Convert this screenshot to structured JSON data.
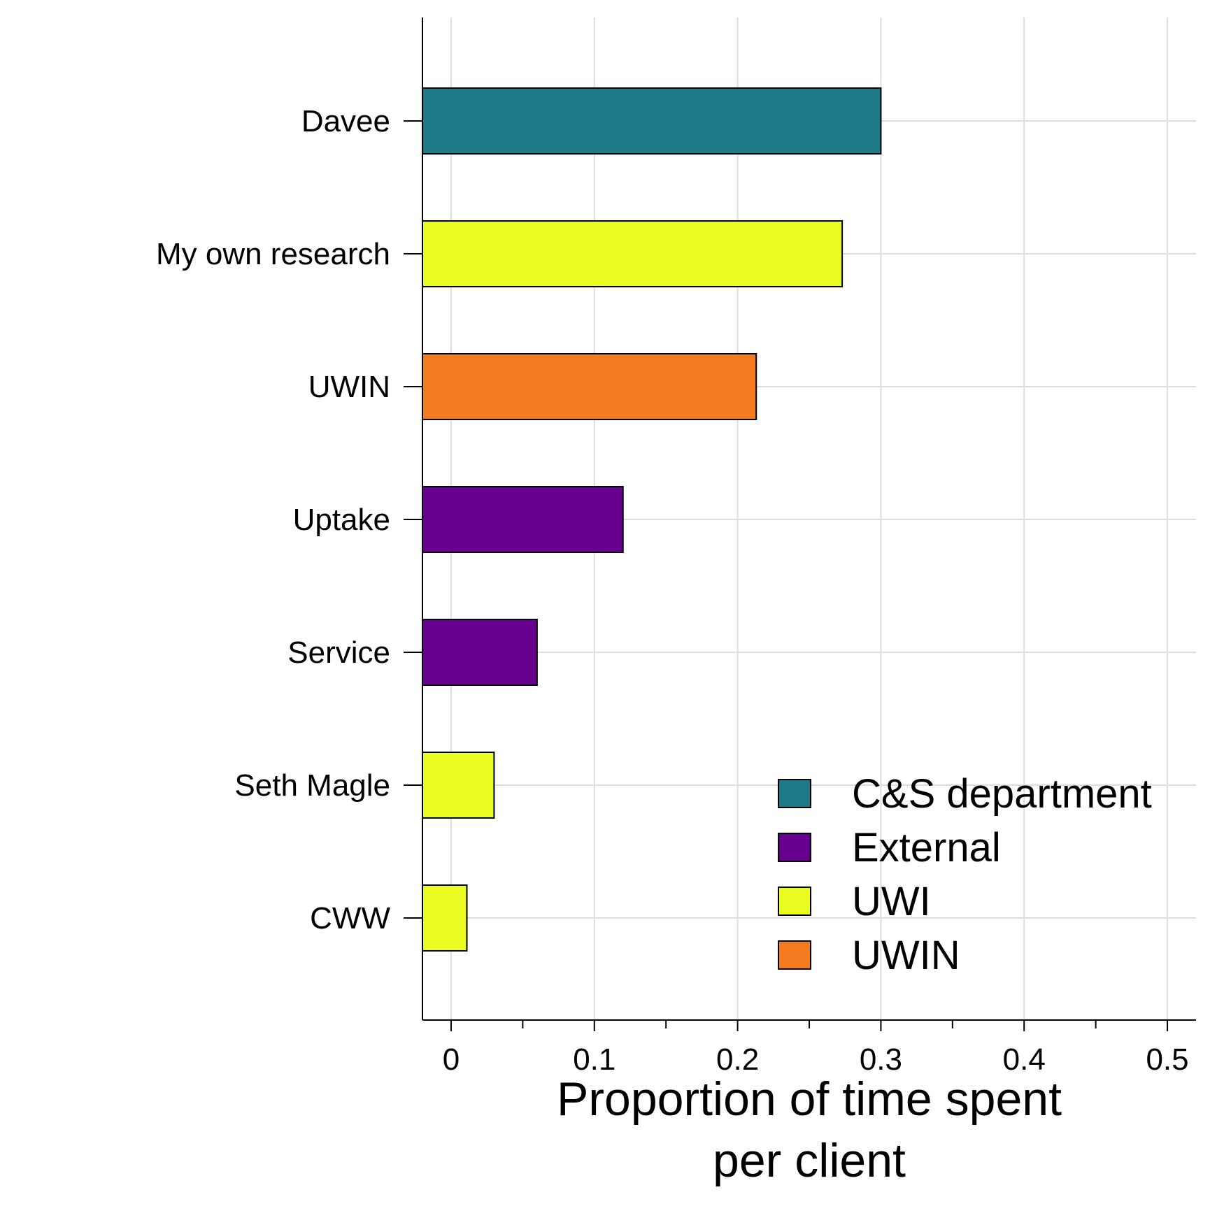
{
  "chart_data": {
    "type": "bar",
    "orientation": "horizontal",
    "title": "",
    "xlabel": [
      "Proportion of time spent",
      "per client"
    ],
    "ylabel": "",
    "xlim": [
      -0.02,
      0.52
    ],
    "xticks": [
      0,
      0.1,
      0.2,
      0.3,
      0.4,
      0.5
    ],
    "xtick_labels": [
      "0",
      "0.1",
      "0.2",
      "0.3",
      "0.4",
      "0.5"
    ],
    "grid": true,
    "legend_position": "bottom-right",
    "categories": [
      "Davee",
      "My own research",
      "UWIN",
      "Uptake",
      "Service",
      "Seth Magle",
      "CWW"
    ],
    "values": [
      0.3,
      0.273,
      0.213,
      0.12,
      0.06,
      0.03,
      0.011
    ],
    "groups": [
      "C&S department",
      "UWI",
      "UWIN",
      "External",
      "External",
      "UWI",
      "UWI"
    ],
    "legend": [
      {
        "name": "C&S department",
        "color": "#1f7a87"
      },
      {
        "name": "External",
        "color": "#68008f"
      },
      {
        "name": "UWI",
        "color": "#eafc21"
      },
      {
        "name": "UWIN",
        "color": "#f47b20"
      }
    ]
  }
}
